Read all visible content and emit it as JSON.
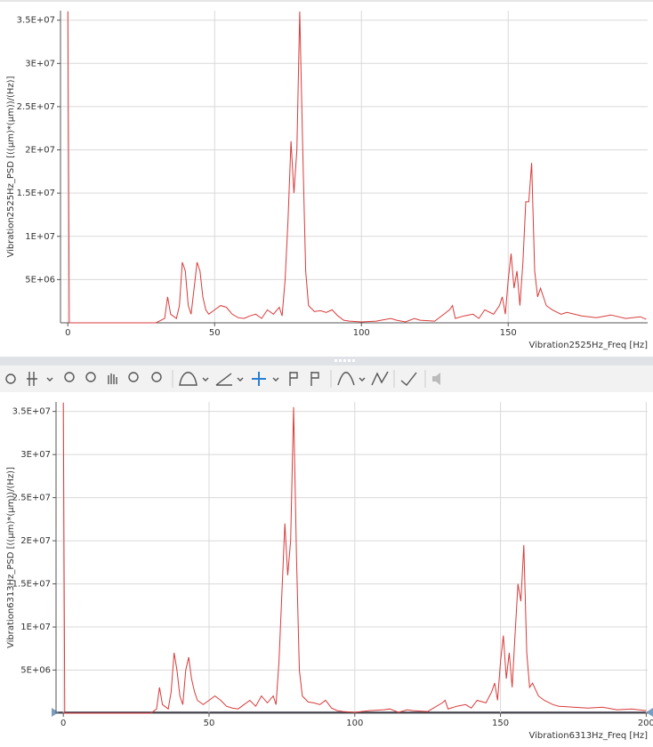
{
  "chart_data": [
    {
      "type": "line",
      "ylabel": "Vibration2525Hz_PSD [((µm)*(µm))/(Hz)]",
      "xlabel": "Vibration2525Hz_Freq [Hz]",
      "xlim": [
        -2.5,
        197.5
      ],
      "ylim": [
        0,
        36100000
      ],
      "xticks": [
        0,
        50,
        100,
        150
      ],
      "yticks": [
        {
          "value": 5000000,
          "label": "5E+06"
        },
        {
          "value": 10000000,
          "label": "1E+07"
        },
        {
          "value": 15000000,
          "label": "1.5E+07"
        },
        {
          "value": 20000000,
          "label": "2E+07"
        },
        {
          "value": 25000000,
          "label": "2.5E+07"
        },
        {
          "value": 30000000,
          "label": "3E+07"
        },
        {
          "value": 35000000,
          "label": "3.5E+07"
        }
      ],
      "grid": true,
      "x": [
        0,
        0.5,
        10,
        20,
        30,
        33,
        34,
        35,
        37,
        38,
        39,
        40,
        41,
        42,
        43,
        44,
        45,
        46,
        47,
        48,
        50,
        52,
        54,
        56,
        58,
        60,
        62,
        64,
        66,
        68,
        70,
        72,
        73,
        74,
        75,
        76,
        77,
        78,
        79,
        80,
        81,
        82,
        84,
        86,
        88,
        90,
        92,
        94,
        96,
        100,
        105,
        110,
        112,
        115,
        118,
        120,
        125,
        130,
        131,
        132,
        135,
        138,
        140,
        142,
        145,
        147,
        148,
        149,
        150,
        151,
        152,
        153,
        154,
        155,
        156,
        157,
        158,
        159,
        160,
        161,
        163,
        165,
        168,
        170,
        175,
        180,
        185,
        190,
        195,
        197
      ],
      "series": [
        {
          "color": "#d93a3a",
          "values": [
            36000000,
            0,
            0,
            0,
            0,
            500000,
            3000000,
            1000000,
            500000,
            2000000,
            7000000,
            6000000,
            2000000,
            1000000,
            4000000,
            7000000,
            6000000,
            3000000,
            1500000,
            1000000,
            1500000,
            2000000,
            1800000,
            1000000,
            600000,
            500000,
            800000,
            1000000,
            500000,
            1500000,
            1000000,
            1800000,
            800000,
            5000000,
            12000000,
            21000000,
            15000000,
            20000000,
            36000000,
            20000000,
            6000000,
            2000000,
            1300000,
            1400000,
            1200000,
            1500000,
            800000,
            300000,
            200000,
            100000,
            200000,
            500000,
            300000,
            100000,
            500000,
            300000,
            200000,
            1500000,
            2000000,
            500000,
            800000,
            1000000,
            500000,
            1500000,
            1000000,
            2000000,
            3000000,
            1000000,
            5000000,
            8000000,
            4000000,
            6000000,
            2000000,
            7000000,
            14000000,
            14000000,
            18500000,
            6000000,
            3000000,
            4000000,
            2000000,
            1500000,
            1000000,
            1200000,
            800000,
            600000,
            900000,
            500000,
            700000,
            400000
          ]
        }
      ]
    },
    {
      "type": "line",
      "ylabel": "Vibration6313Hz_PSD [((µm)*(µm))/(Hz)]",
      "xlabel": "Vibration6313Hz_Freq [Hz]",
      "xlim": [
        -2.5,
        200.5
      ],
      "ylim": [
        0,
        36100000
      ],
      "xticks": [
        0,
        50,
        100,
        150,
        200
      ],
      "yticks": [
        {
          "value": 5000000,
          "label": "5E+06"
        },
        {
          "value": 10000000,
          "label": "1E+07"
        },
        {
          "value": 15000000,
          "label": "1.5E+07"
        },
        {
          "value": 20000000,
          "label": "2E+07"
        },
        {
          "value": 25000000,
          "label": "2.5E+07"
        },
        {
          "value": 30000000,
          "label": "3E+07"
        },
        {
          "value": 35000000,
          "label": "3.5E+07"
        }
      ],
      "grid": true,
      "x": [
        0,
        0.5,
        10,
        20,
        30,
        32,
        33,
        34,
        36,
        37,
        38,
        39,
        40,
        41,
        42,
        43,
        44,
        45,
        46,
        48,
        50,
        52,
        54,
        56,
        58,
        60,
        62,
        64,
        66,
        68,
        70,
        72,
        73,
        74,
        75,
        76,
        77,
        78,
        79,
        80,
        81,
        82,
        84,
        86,
        88,
        90,
        92,
        94,
        96,
        100,
        105,
        110,
        112,
        115,
        118,
        120,
        125,
        130,
        131,
        132,
        135,
        138,
        140,
        142,
        145,
        147,
        148,
        149,
        150,
        151,
        152,
        153,
        154,
        155,
        156,
        157,
        158,
        159,
        160,
        161,
        163,
        165,
        168,
        170,
        175,
        180,
        185,
        190,
        195,
        200
      ],
      "series": [
        {
          "color": "#d93a3a",
          "values": [
            36000000,
            0,
            0,
            0,
            0,
            500000,
            3000000,
            1000000,
            500000,
            2500000,
            7000000,
            5000000,
            2000000,
            1000000,
            5000000,
            6500000,
            4000000,
            2500000,
            1500000,
            1000000,
            1500000,
            2000000,
            1500000,
            800000,
            600000,
            500000,
            1000000,
            1500000,
            800000,
            2000000,
            1200000,
            2000000,
            1000000,
            6000000,
            14000000,
            22000000,
            16000000,
            20000000,
            35500000,
            18000000,
            5000000,
            2000000,
            1300000,
            1200000,
            1000000,
            1500000,
            600000,
            300000,
            200000,
            100000,
            300000,
            400000,
            500000,
            100000,
            400000,
            300000,
            200000,
            1200000,
            1500000,
            500000,
            800000,
            1000000,
            600000,
            1500000,
            1200000,
            2500000,
            3500000,
            1500000,
            6000000,
            9000000,
            4000000,
            7000000,
            3000000,
            9000000,
            15000000,
            13000000,
            19500000,
            7000000,
            3000000,
            3500000,
            2000000,
            1500000,
            1000000,
            800000,
            700000,
            600000,
            700000,
            400000,
            500000,
            300000
          ]
        }
      ]
    }
  ]
}
